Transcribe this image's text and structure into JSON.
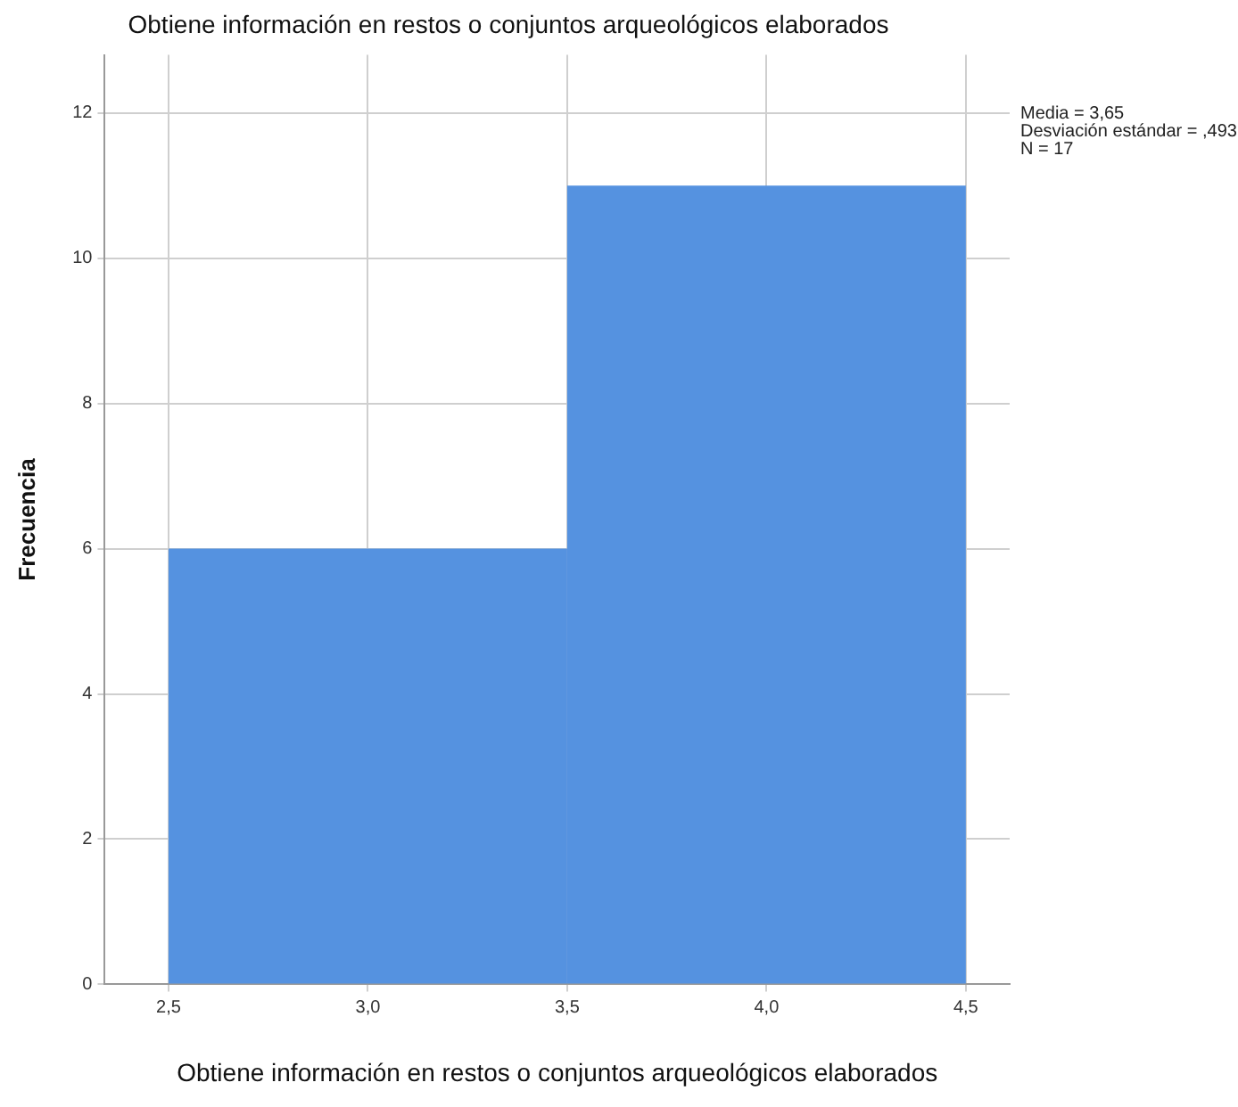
{
  "chart_data": {
    "type": "histogram",
    "title": "Obtiene información en restos o conjuntos arqueológicos elaborados",
    "xlabel": "Obtiene información en restos o conjuntos arqueológicos elaborados",
    "ylabel": "Frecuencia",
    "bins": [
      2.5,
      3.5,
      4.5
    ],
    "values": [
      6,
      11
    ],
    "color": "#5592e0",
    "xlim": [
      2.34,
      4.61
    ],
    "xticks": [
      {
        "value": 2.5,
        "label": "2,5"
      },
      {
        "value": 3.0,
        "label": "3,0"
      },
      {
        "value": 3.5,
        "label": "3,5"
      },
      {
        "value": 4.0,
        "label": "4,0"
      },
      {
        "value": 4.5,
        "label": "4,5"
      }
    ],
    "ylim": [
      0,
      12.8
    ],
    "yticks": [
      0,
      2,
      4,
      6,
      8,
      10,
      12
    ],
    "grid": true,
    "annotations": [
      "Media = 3,65",
      "Desviación estándar = ,493",
      "N = 17"
    ]
  }
}
